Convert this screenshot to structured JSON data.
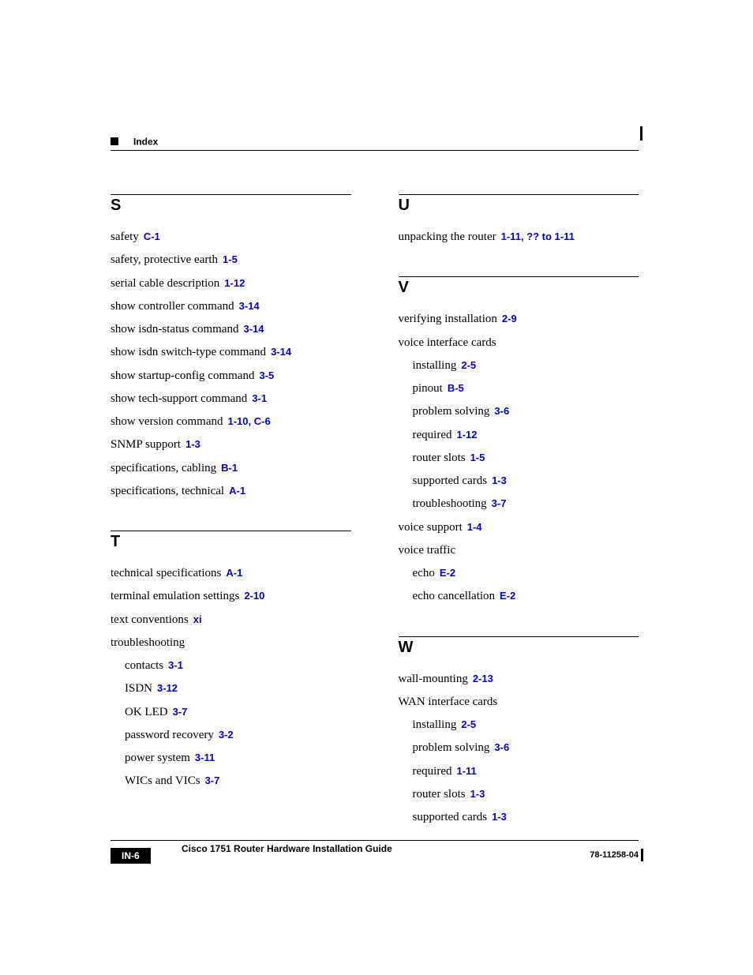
{
  "header": {
    "title": "Index"
  },
  "link_color": "#0000cc",
  "footer": {
    "guide": "Cisco 1751 Router Hardware Installation Guide",
    "page": "IN-6",
    "docnum": "78-11258-04"
  },
  "left": [
    {
      "letter": "S",
      "entries": [
        {
          "text": "safety",
          "refs": [
            "C-1"
          ]
        },
        {
          "text": "safety, protective earth",
          "refs": [
            "1-5"
          ]
        },
        {
          "text": "serial cable description",
          "refs": [
            "1-12"
          ]
        },
        {
          "text": "show controller command",
          "refs": [
            "3-14"
          ]
        },
        {
          "text": "show isdn-status command",
          "refs": [
            "3-14"
          ]
        },
        {
          "text": "show isdn switch-type command",
          "refs": [
            "3-14"
          ]
        },
        {
          "text": "show startup-config command",
          "refs": [
            "3-5"
          ]
        },
        {
          "text": "show tech-support command",
          "refs": [
            "3-1"
          ]
        },
        {
          "text": "show version command",
          "refs": [
            "1-10",
            "C-6"
          ]
        },
        {
          "text": "SNMP support",
          "refs": [
            "1-3"
          ]
        },
        {
          "text": "specifications, cabling",
          "refs": [
            "B-1"
          ]
        },
        {
          "text": "specifications, technical",
          "refs": [
            "A-1"
          ]
        }
      ]
    },
    {
      "letter": "T",
      "entries": [
        {
          "text": "technical specifications",
          "refs": [
            "A-1"
          ]
        },
        {
          "text": "terminal emulation settings",
          "refs": [
            "2-10"
          ]
        },
        {
          "text": "text conventions",
          "refs": [
            "xi"
          ]
        },
        {
          "text": "troubleshooting",
          "refs": []
        },
        {
          "text": "contacts",
          "refs": [
            "3-1"
          ],
          "sub": true
        },
        {
          "text": "ISDN",
          "refs": [
            "3-12"
          ],
          "sub": true
        },
        {
          "text": "OK LED",
          "refs": [
            "3-7"
          ],
          "sub": true
        },
        {
          "text": "password recovery",
          "refs": [
            "3-2"
          ],
          "sub": true
        },
        {
          "text": "power system",
          "refs": [
            "3-11"
          ],
          "sub": true
        },
        {
          "text": "WICs and VICs",
          "refs": [
            "3-7"
          ],
          "sub": true
        }
      ]
    }
  ],
  "right": [
    {
      "letter": "U",
      "entries": [
        {
          "text": "unpacking the router",
          "refs": [
            "1-11",
            "?? to 1-11"
          ]
        }
      ]
    },
    {
      "letter": "V",
      "entries": [
        {
          "text": "verifying installation",
          "refs": [
            "2-9"
          ]
        },
        {
          "text": "voice interface cards",
          "refs": []
        },
        {
          "text": "installing",
          "refs": [
            "2-5"
          ],
          "sub": true
        },
        {
          "text": "pinout",
          "refs": [
            "B-5"
          ],
          "sub": true
        },
        {
          "text": "problem solving",
          "refs": [
            "3-6"
          ],
          "sub": true
        },
        {
          "text": "required",
          "refs": [
            "1-12"
          ],
          "sub": true
        },
        {
          "text": "router slots",
          "refs": [
            "1-5"
          ],
          "sub": true
        },
        {
          "text": "supported cards",
          "refs": [
            "1-3"
          ],
          "sub": true
        },
        {
          "text": "troubleshooting",
          "refs": [
            "3-7"
          ],
          "sub": true
        },
        {
          "text": "voice support",
          "refs": [
            "1-4"
          ]
        },
        {
          "text": "voice traffic",
          "refs": []
        },
        {
          "text": "echo",
          "refs": [
            "E-2"
          ],
          "sub": true
        },
        {
          "text": "echo cancellation",
          "refs": [
            "E-2"
          ],
          "sub": true
        }
      ]
    },
    {
      "letter": "W",
      "entries": [
        {
          "text": "wall-mounting",
          "refs": [
            "2-13"
          ]
        },
        {
          "text": "WAN interface cards",
          "refs": []
        },
        {
          "text": "installing",
          "refs": [
            "2-5"
          ],
          "sub": true
        },
        {
          "text": "problem solving",
          "refs": [
            "3-6"
          ],
          "sub": true
        },
        {
          "text": "required",
          "refs": [
            "1-11"
          ],
          "sub": true
        },
        {
          "text": "router slots",
          "refs": [
            "1-3"
          ],
          "sub": true
        },
        {
          "text": "supported cards",
          "refs": [
            "1-3"
          ],
          "sub": true
        }
      ]
    }
  ]
}
